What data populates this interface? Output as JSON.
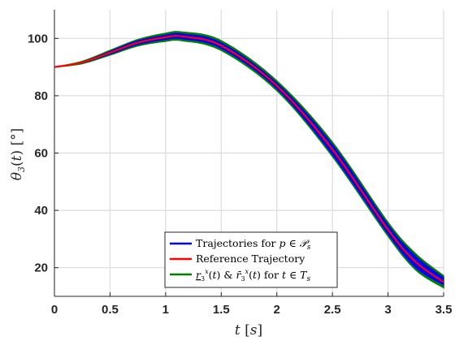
{
  "chart_data": {
    "type": "line",
    "title": "",
    "xlabel": "t [s]",
    "ylabel": "θ3(t) [°]",
    "xlim": [
      0,
      3.5
    ],
    "ylim": [
      10,
      110
    ],
    "grid": true,
    "x_ticks": [
      "0",
      "0.5",
      "1",
      "1.5",
      "2",
      "2.5",
      "3",
      "3.5"
    ],
    "y_ticks": [
      "20",
      "40",
      "60",
      "80",
      "100"
    ],
    "x_tick_values": [
      0,
      0.5,
      1,
      1.5,
      2,
      2.5,
      3,
      3.5
    ],
    "y_tick_values": [
      20,
      40,
      60,
      80,
      100
    ],
    "legend_position": "bottom-center",
    "series": [
      {
        "name": "Trajectories for p ∈ 𝒫s",
        "color": "#0000ff",
        "kind": "band",
        "x": [
          0,
          0.25,
          0.5,
          0.75,
          1.0,
          1.15,
          1.5,
          2.0,
          2.5,
          3.0,
          3.25,
          3.5
        ],
        "lower": [
          90,
          91.4,
          94.5,
          97.8,
          99.6,
          99.8,
          96.5,
          82.5,
          59.5,
          31.8,
          20.0,
          14.0
        ],
        "upper": [
          90,
          91.8,
          95.5,
          99.2,
          101.2,
          101.6,
          98.5,
          84.5,
          63.0,
          35.0,
          24.0,
          16.5
        ]
      },
      {
        "name": "Reference Trajectory",
        "color": "#ff0000",
        "kind": "line",
        "x": [
          0,
          0.25,
          0.5,
          0.75,
          1.0,
          1.15,
          1.5,
          2.0,
          2.5,
          3.0,
          3.25,
          3.5
        ],
        "y": [
          90,
          91.6,
          95.0,
          98.5,
          100.4,
          100.7,
          97.5,
          83.5,
          61.3,
          33.3,
          22.0,
          15.0
        ]
      },
      {
        "name": "r3x(t) & r̄3x(t) for t ∈ Ts",
        "color": "#008000",
        "kind": "envelope",
        "x": [
          0,
          0.25,
          0.5,
          0.75,
          1.0,
          1.15,
          1.5,
          2.0,
          2.5,
          3.0,
          3.25,
          3.5
        ],
        "lower": [
          90,
          91.2,
          94.2,
          97.4,
          99.0,
          99.2,
          95.8,
          81.8,
          58.8,
          31.0,
          19.2,
          13.0
        ],
        "upper": [
          90,
          92.0,
          95.8,
          99.6,
          101.8,
          102.2,
          99.2,
          85.2,
          63.8,
          35.8,
          24.8,
          17.2
        ]
      }
    ]
  }
}
